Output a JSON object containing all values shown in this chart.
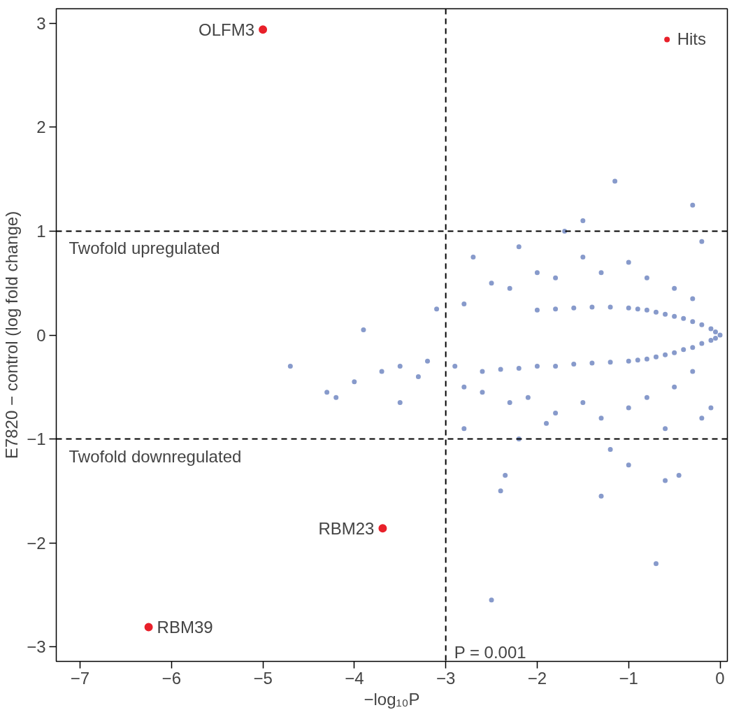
{
  "chart_data": {
    "type": "scatter",
    "xlabel": "−log₁₀P",
    "ylabel": "E7820 − control (log fold change)",
    "xlim": [
      -7.26,
      0.08
    ],
    "ylim": [
      -3.14,
      3.14
    ],
    "xticks": [
      -7,
      -6,
      -5,
      -4,
      -3,
      -2,
      -1,
      0
    ],
    "yticks": [
      -3,
      -2,
      -1,
      0,
      1,
      2,
      3
    ],
    "grid": false,
    "legend": "top right",
    "marker": "circle",
    "series": [
      {
        "color": "#2447a0",
        "x": [
          0,
          -0.05,
          -0.05,
          -0.1,
          -0.1,
          -0.2,
          -0.2,
          -0.3,
          -0.3,
          -0.4,
          -0.4,
          -0.5,
          -0.5,
          -0.6,
          -0.6,
          -0.7,
          -0.7,
          -0.8,
          -0.8,
          -0.9,
          -0.9,
          -1.0,
          -1.0,
          -1.2,
          -1.2,
          -1.4,
          -1.4,
          -1.6,
          -1.6,
          -1.8,
          -1.8,
          -2.0,
          -2.0,
          -2.2,
          -2.4,
          -2.6,
          -0.3,
          -0.3,
          -0.5,
          -0.5,
          -0.8,
          -0.8,
          -1.0,
          -1.0,
          -1.3,
          -1.3,
          -1.5,
          -1.5,
          -1.8,
          -1.8,
          -2.0,
          -2.1,
          -2.3,
          -2.3,
          -2.5,
          -2.6,
          -2.8,
          -2.8,
          -2.9,
          -3.2,
          -3.3,
          -3.5,
          -3.7,
          -4.0,
          -4.3,
          -3.1,
          -2.7,
          -2.2,
          -1.7,
          -1.15,
          -0.3,
          -1.5,
          -0.2,
          -0.1,
          -0.2,
          -0.6,
          -1.2,
          -1.0,
          -0.6,
          -0.45,
          -1.3,
          -2.4,
          -2.35,
          -0.7,
          -2.5,
          -2.2,
          -2.8,
          -1.9,
          -4.7,
          -4.2,
          -3.5,
          -3.9
        ],
        "values": [
          0,
          0.03,
          -0.03,
          0.06,
          -0.05,
          0.1,
          -0.08,
          0.13,
          -0.12,
          0.16,
          -0.14,
          0.18,
          -0.17,
          0.2,
          -0.19,
          0.22,
          -0.21,
          0.24,
          -0.23,
          0.25,
          -0.24,
          0.26,
          -0.25,
          0.27,
          -0.26,
          0.27,
          -0.27,
          0.26,
          -0.28,
          0.25,
          -0.3,
          0.24,
          -0.3,
          -0.32,
          -0.33,
          -0.35,
          0.35,
          -0.35,
          0.45,
          -0.5,
          0.55,
          -0.6,
          0.7,
          -0.7,
          0.6,
          -0.8,
          0.75,
          -0.65,
          0.55,
          -0.75,
          0.6,
          -0.6,
          0.45,
          -0.65,
          0.5,
          -0.55,
          0.3,
          -0.5,
          -0.3,
          -0.25,
          -0.4,
          -0.3,
          -0.35,
          -0.45,
          -0.55,
          0.25,
          0.75,
          0.85,
          1.0,
          1.48,
          1.25,
          1.1,
          0.9,
          -0.7,
          -0.8,
          -0.9,
          -1.1,
          -1.25,
          -1.4,
          -1.35,
          -1.55,
          -1.5,
          -1.35,
          -2.2,
          -2.55,
          -1.0,
          -0.9,
          -0.85,
          -0.3,
          -0.6,
          -0.65,
          0.05
        ]
      },
      {
        "name": "Hits",
        "color": "#e8202a",
        "x": [
          -5.0,
          -3.69,
          -6.25
        ],
        "values": [
          2.94,
          -1.86,
          -2.81
        ]
      }
    ],
    "ref_lines": [
      {
        "axis": "y",
        "value": 1,
        "label": "Twofold upregulated",
        "line_style": "dashed"
      },
      {
        "axis": "y",
        "value": -1,
        "label": "Twofold downregulated",
        "line_style": "dashed"
      },
      {
        "axis": "x",
        "value": -3,
        "line_style": "dashed"
      }
    ],
    "annotations": [
      {
        "text": "OLFM3",
        "x": -5.0,
        "y": 2.94
      },
      {
        "text": "RBM23",
        "x": -3.69,
        "y": -1.86
      },
      {
        "text": "RBM39",
        "x": -6.25,
        "y": -2.81
      },
      {
        "text": "P = 0.001",
        "x": -3,
        "y": -3.14
      }
    ]
  }
}
